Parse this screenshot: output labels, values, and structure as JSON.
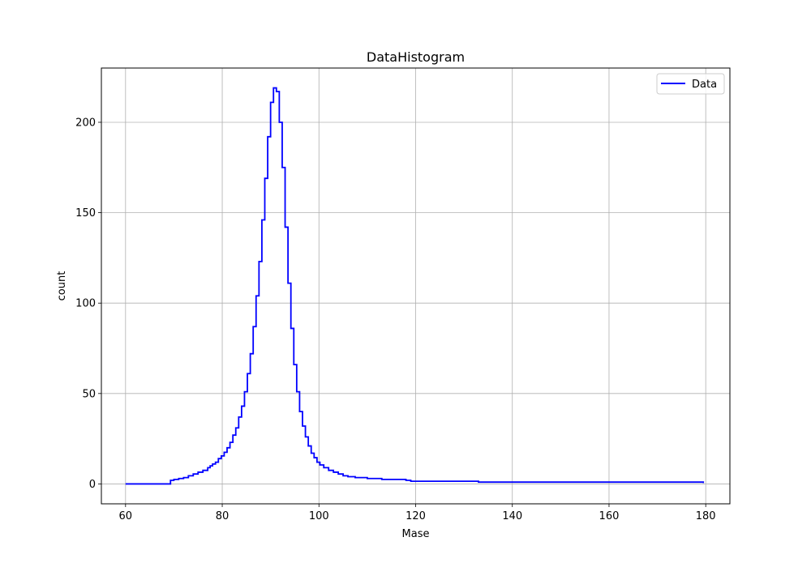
{
  "chart_data": {
    "type": "line",
    "drawstyle": "steps-post",
    "title": "DataHistogram",
    "xlabel": "Mase",
    "ylabel": "count",
    "xlim": [
      55,
      185
    ],
    "ylim": [
      -11,
      230
    ],
    "xticks": [
      60,
      80,
      100,
      120,
      140,
      160,
      180
    ],
    "yticks": [
      0,
      50,
      100,
      150,
      200
    ],
    "grid": true,
    "legend_position": "top-right",
    "series": [
      {
        "name": "Data",
        "color": "#0000ff",
        "x": [
          60,
          69.3,
          70,
          71,
          72,
          73,
          74,
          75,
          76,
          77,
          77.5,
          78,
          78.6,
          79.2,
          79.8,
          80.4,
          81,
          81.6,
          82.2,
          82.8,
          83.4,
          84,
          84.6,
          85.2,
          85.8,
          86.4,
          87,
          87.6,
          88.2,
          88.8,
          89.4,
          90,
          90.6,
          91.2,
          91.8,
          92.4,
          93,
          93.6,
          94.2,
          94.8,
          95.4,
          96,
          96.6,
          97.2,
          97.8,
          98.4,
          99,
          99.6,
          100.2,
          101,
          102,
          103,
          104,
          105,
          106,
          107.5,
          110,
          113,
          118,
          119,
          132,
          133,
          179.5
        ],
        "y": [
          0,
          2,
          2.5,
          3,
          3.5,
          4.5,
          5.5,
          6.5,
          7.5,
          9,
          10,
          11,
          12,
          14,
          15.5,
          17.5,
          20,
          23,
          27,
          31,
          37,
          43,
          51,
          61,
          72,
          87,
          104,
          123,
          146,
          169,
          192,
          211,
          219,
          217,
          200,
          175,
          142,
          111,
          86,
          66,
          51,
          40,
          32,
          26,
          21,
          17,
          14.5,
          12,
          10.5,
          9,
          7.5,
          6.5,
          5.5,
          4.5,
          4,
          3.5,
          3,
          2.5,
          2,
          1.5,
          1.5,
          1,
          0.5
        ]
      }
    ]
  }
}
